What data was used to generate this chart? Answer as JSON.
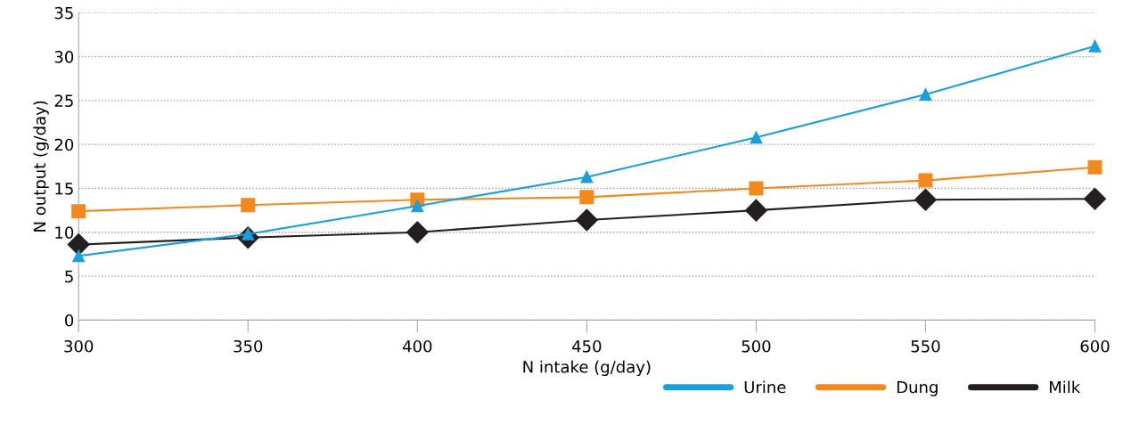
{
  "chart_data": {
    "type": "line",
    "xlabel": "N intake (g/day)",
    "ylabel": "N output (g/day)",
    "x": [
      300,
      350,
      400,
      450,
      500,
      550,
      600
    ],
    "series": [
      {
        "name": "Urine",
        "color": "#1a9fdb",
        "marker": "triangle",
        "values": [
          7.3,
          9.8,
          13.0,
          16.3,
          20.8,
          25.7,
          31.2
        ]
      },
      {
        "name": "Dung",
        "color": "#f08a1f",
        "marker": "square",
        "values": [
          12.4,
          13.1,
          13.7,
          14.0,
          15.0,
          15.9,
          17.4
        ]
      },
      {
        "name": "Milk",
        "color": "#231f20",
        "marker": "diamond",
        "values": [
          8.6,
          9.4,
          10.0,
          11.4,
          12.5,
          13.7,
          13.8
        ]
      }
    ],
    "xlim": [
      300,
      600
    ],
    "xticks": [
      300,
      350,
      400,
      450,
      500,
      550,
      600
    ],
    "ylim": [
      0,
      35
    ],
    "yticks": [
      0,
      5,
      10,
      15,
      20,
      25,
      30,
      35
    ],
    "grid": "y",
    "legend": "bottom right",
    "line_style": "solid"
  }
}
